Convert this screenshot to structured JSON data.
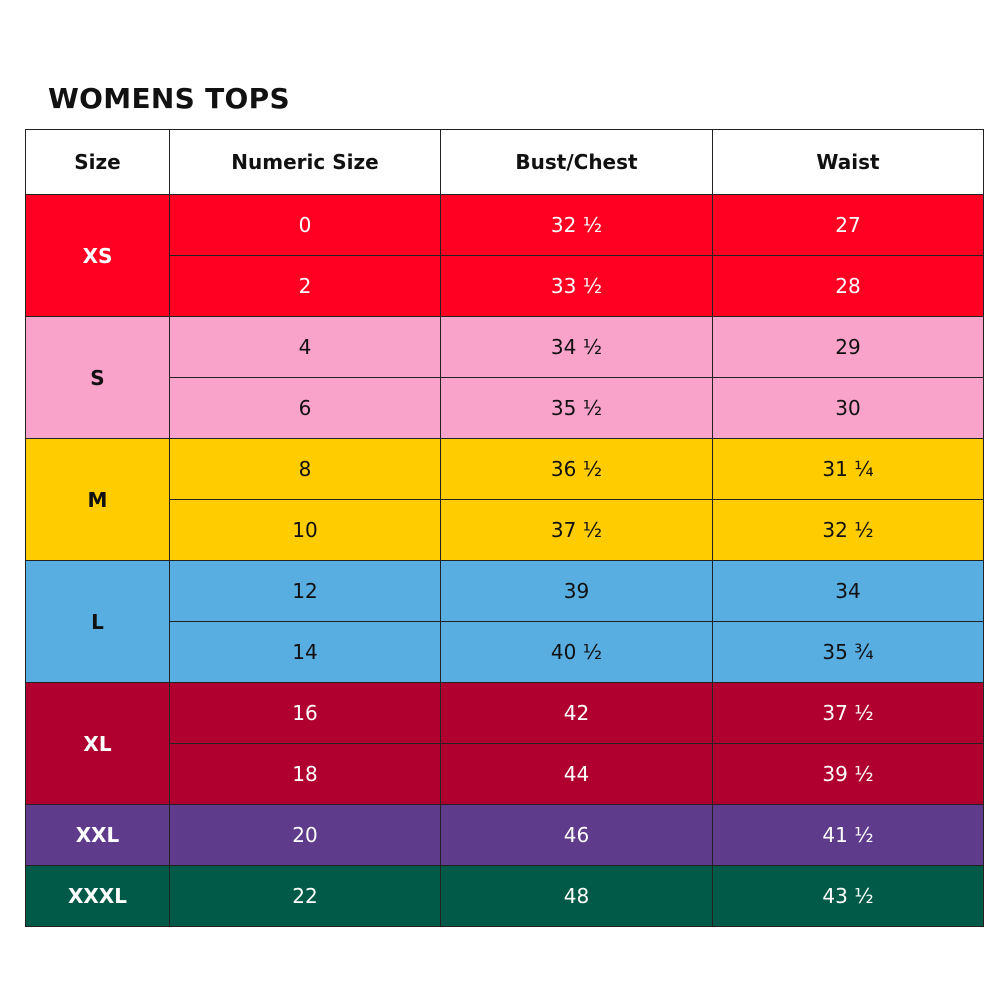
{
  "title": "WOMENS TOPS",
  "table": {
    "columns": [
      "Size",
      "Numeric Size",
      "Bust/Chest",
      "Waist"
    ],
    "groups": [
      {
        "size": "XS",
        "color": "#ff0022",
        "text_color": "#ffffff",
        "rows": [
          [
            "0",
            "32 ½",
            "27"
          ],
          [
            "2",
            "33 ½",
            "28"
          ]
        ]
      },
      {
        "size": "S",
        "color": "#f9a3ca",
        "text_color": "#111111",
        "rows": [
          [
            "4",
            "34 ½",
            "29"
          ],
          [
            "6",
            "35 ½",
            "30"
          ]
        ]
      },
      {
        "size": "M",
        "color": "#ffcc00",
        "text_color": "#111111",
        "rows": [
          [
            "8",
            "36 ½",
            "31 ¼"
          ],
          [
            "10",
            "37 ½",
            "32 ½"
          ]
        ]
      },
      {
        "size": "L",
        "color": "#58ade1",
        "text_color": "#111111",
        "rows": [
          [
            "12",
            "39",
            "34"
          ],
          [
            "14",
            "40 ½",
            "35 ¾"
          ]
        ]
      },
      {
        "size": "XL",
        "color": "#b0002f",
        "text_color": "#ffffff",
        "rows": [
          [
            "16",
            "42",
            "37 ½"
          ],
          [
            "18",
            "44",
            "39 ½"
          ]
        ]
      },
      {
        "size": "XXL",
        "color": "#5e3b8b",
        "text_color": "#ffffff",
        "rows": [
          [
            "20",
            "46",
            "41 ½"
          ]
        ]
      },
      {
        "size": "XXXL",
        "color": "#005a47",
        "text_color": "#ffffff",
        "rows": [
          [
            "22",
            "48",
            "43 ½"
          ]
        ]
      }
    ]
  }
}
